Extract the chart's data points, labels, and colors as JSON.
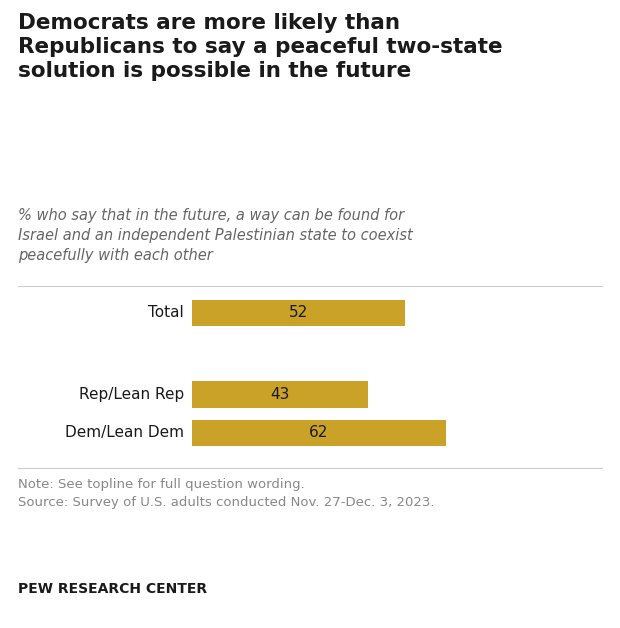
{
  "title": "Democrats are more likely than\nRepublicans to say a peaceful two-state\nsolution is possible in the future",
  "subtitle": "% who say that in the future, a way can be found for\nIsrael and an independent Palestinian state to coexist\npeacefully with each other",
  "categories": [
    "Total",
    "Rep/Lean Rep",
    "Dem/Lean Dem"
  ],
  "values": [
    52,
    43,
    62
  ],
  "bar_color": "#C9A227",
  "note_line1": "Note: See topline for full question wording.",
  "note_line2": "Source: Survey of U.S. adults conducted Nov. 27-Dec. 3, 2023.",
  "footer": "PEW RESEARCH CENTER",
  "xlim": [
    0,
    100
  ],
  "title_fontsize": 15.5,
  "subtitle_fontsize": 10.5,
  "label_fontsize": 11,
  "value_fontsize": 11,
  "note_fontsize": 9.5,
  "footer_fontsize": 10,
  "background_color": "#ffffff"
}
